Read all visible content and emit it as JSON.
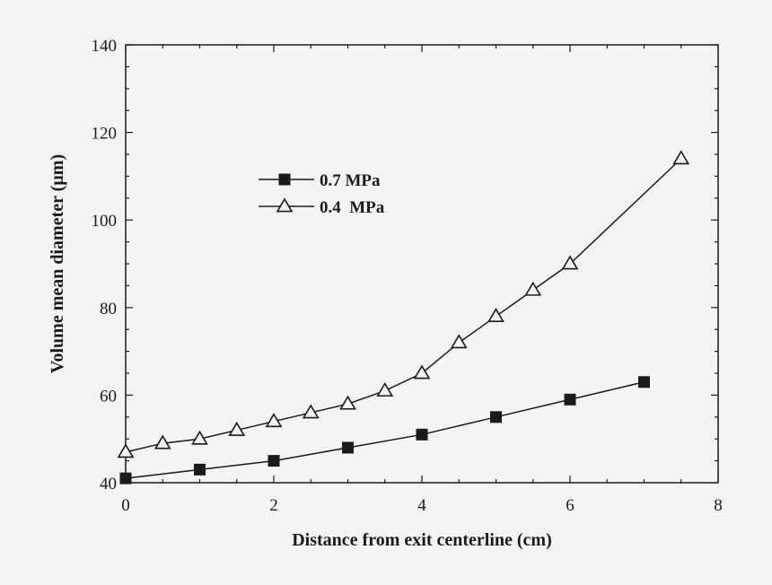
{
  "chart_data": {
    "type": "line",
    "title": "",
    "xlabel": "Distance from exit centerline (cm)",
    "ylabel": "Volume mean diameter (µm)",
    "xlim": [
      0,
      8
    ],
    "ylim": [
      40,
      140
    ],
    "x_ticks": [
      0,
      2,
      4,
      6,
      8
    ],
    "y_ticks": [
      40,
      60,
      80,
      100,
      120,
      140
    ],
    "x_tick_labels": [
      "0",
      "2",
      "4",
      "6",
      "8"
    ],
    "y_tick_labels": [
      "40",
      "60",
      "80",
      "100",
      "120",
      "140"
    ],
    "grid": false,
    "legend_position": "upper-left",
    "series": [
      {
        "name": "0.7 MPa",
        "marker": "filled-square",
        "color": "#1a1a1a",
        "x": [
          0,
          1,
          2,
          3,
          4,
          5,
          6,
          7
        ],
        "y": [
          41,
          43,
          45,
          48,
          51,
          55,
          59,
          63
        ]
      },
      {
        "name": "0.4  MPa",
        "marker": "open-triangle",
        "color": "#1a1a1a",
        "x": [
          0,
          0.5,
          1,
          1.5,
          2,
          2.5,
          3,
          3.5,
          4,
          4.5,
          5,
          5.5,
          6,
          7.5
        ],
        "y": [
          47,
          49,
          50,
          52,
          54,
          56,
          58,
          61,
          65,
          72,
          78,
          84,
          90,
          114
        ]
      }
    ]
  }
}
